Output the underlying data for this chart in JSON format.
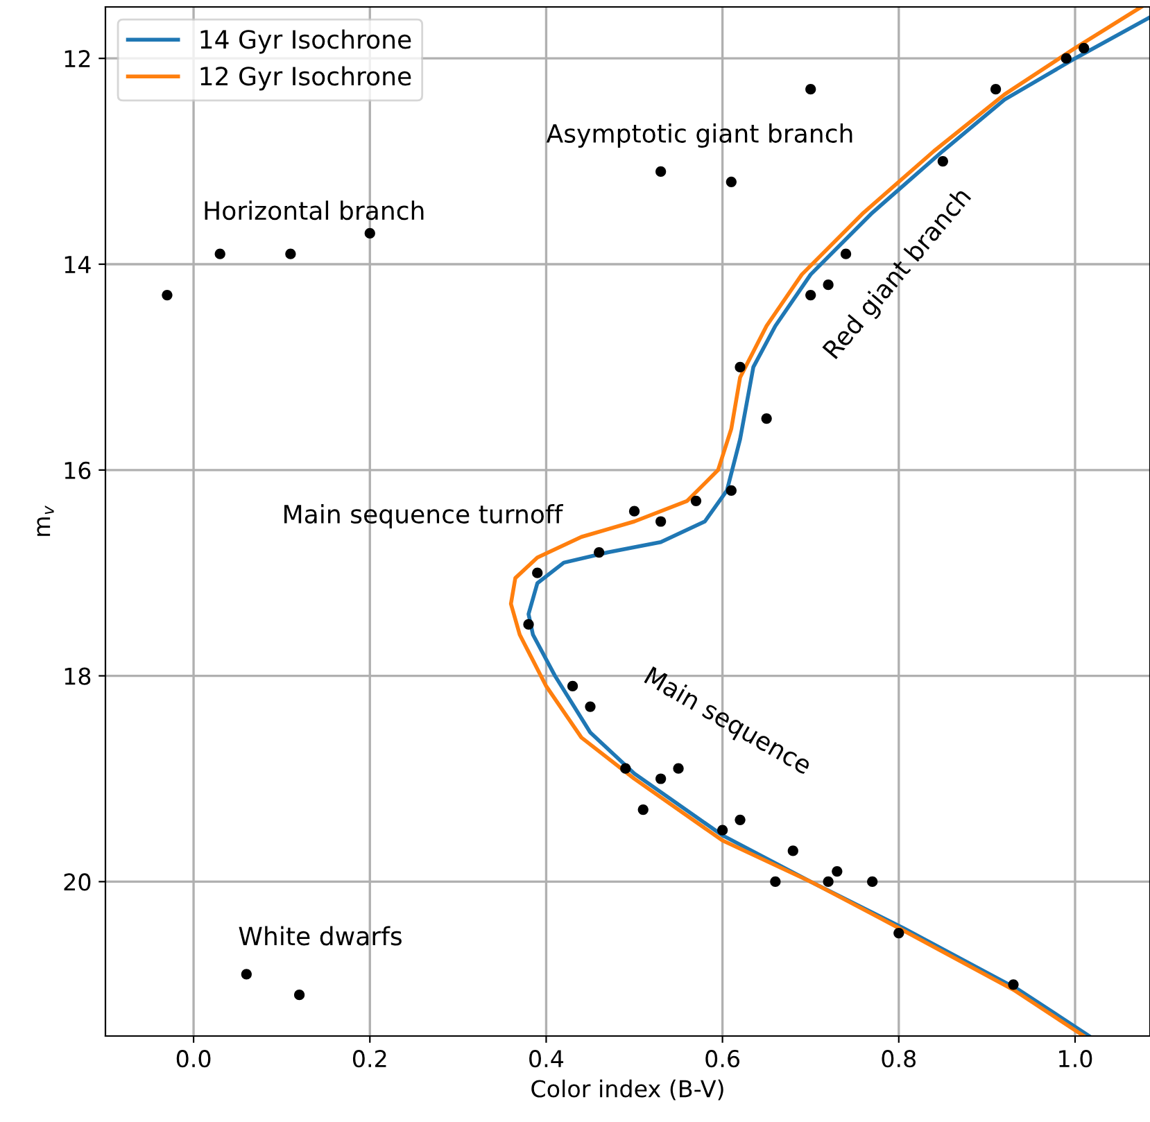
{
  "chart_data": {
    "type": "scatter",
    "xlabel": "Color index (B-V)",
    "ylabel": "m$_{v}$",
    "xlim": [
      -0.1,
      1.085
    ],
    "ylim": [
      21.5,
      11.5
    ],
    "xticks": [
      {
        "value": 0.0,
        "label": "0.0"
      },
      0.2,
      0.4,
      0.6,
      0.8,
      {
        "value": 1.0,
        "label": "1.0"
      }
    ],
    "yticks": [
      12,
      14,
      16,
      18,
      20
    ],
    "grid": true,
    "legend": "top left",
    "series": [
      {
        "marker": "circle",
        "color": "#000000",
        "x": [
          -0.03,
          0.03,
          0.11,
          0.2,
          0.53,
          0.61,
          0.7,
          0.91,
          0.99,
          1.01,
          0.85,
          0.74,
          0.72,
          0.7,
          0.62,
          0.65,
          0.61,
          0.57,
          0.53,
          0.5,
          0.46,
          0.39,
          0.38,
          0.43,
          0.45,
          0.49,
          0.51,
          0.53,
          0.55,
          0.6,
          0.62,
          0.66,
          0.68,
          0.72,
          0.73,
          0.77,
          0.8,
          0.93,
          0.06,
          0.12
        ],
        "values": [
          14.3,
          13.9,
          13.9,
          13.7,
          13.1,
          13.2,
          12.3,
          12.3,
          12.0,
          11.9,
          13.0,
          13.9,
          14.2,
          14.3,
          15.0,
          15.5,
          16.2,
          16.3,
          16.5,
          16.4,
          16.8,
          17.0,
          17.5,
          18.1,
          18.3,
          18.9,
          19.3,
          19.0,
          18.9,
          19.5,
          19.4,
          20.0,
          19.7,
          20.0,
          19.9,
          20.0,
          20.5,
          21.0,
          20.9,
          21.1
        ]
      },
      {
        "type": "line",
        "name": "14 Gyr Isochrone",
        "color": "#1f77b4",
        "x": [
          1.016,
          0.936,
          0.805,
          0.7,
          0.6,
          0.5,
          0.45,
          0.41,
          0.385,
          0.38,
          0.39,
          0.42,
          0.47,
          0.53,
          0.58,
          0.605,
          0.62,
          0.635,
          0.66,
          0.7,
          0.77,
          0.85,
          0.92,
          1.0,
          1.085
        ],
        "values": [
          21.5,
          21.05,
          20.45,
          20.0,
          19.55,
          18.95,
          18.55,
          18.0,
          17.6,
          17.4,
          17.1,
          16.9,
          16.8,
          16.7,
          16.5,
          16.2,
          15.7,
          15.0,
          14.6,
          14.1,
          13.5,
          12.9,
          12.4,
          12.0,
          11.6
        ]
      },
      {
        "type": "line",
        "name": "12 Gyr Isochrone",
        "color": "#ff7f0e",
        "x": [
          1.01,
          0.93,
          0.8,
          0.7,
          0.6,
          0.5,
          0.44,
          0.4,
          0.37,
          0.36,
          0.365,
          0.39,
          0.44,
          0.5,
          0.56,
          0.595,
          0.61,
          0.62,
          0.65,
          0.69,
          0.76,
          0.84,
          0.92,
          1.0,
          1.075
        ],
        "values": [
          21.5,
          21.05,
          20.45,
          20.0,
          19.6,
          19.0,
          18.6,
          18.1,
          17.6,
          17.3,
          17.05,
          16.85,
          16.65,
          16.5,
          16.3,
          16.0,
          15.6,
          15.1,
          14.6,
          14.1,
          13.5,
          12.9,
          12.35,
          11.9,
          11.5
        ]
      }
    ],
    "annotations": [
      "Horizontal branch",
      "Asymptotic giant branch",
      "Red giant branch",
      "Main sequence turnoff",
      "Main sequence",
      "White dwarfs"
    ]
  }
}
